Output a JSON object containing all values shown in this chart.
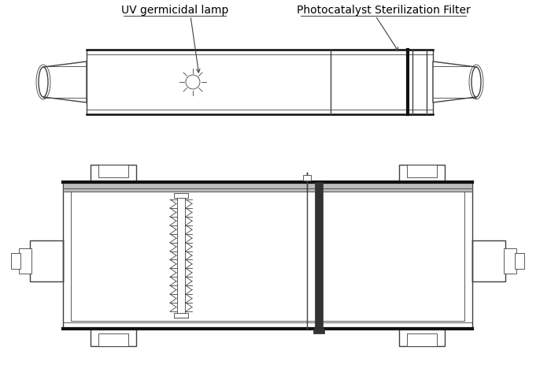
{
  "label_uv": "UV germicidal lamp",
  "label_photo": "Photocatalyst Sterilization Filter",
  "bg_color": "#ffffff",
  "lc": "#404040",
  "lc_thick": "#1a1a1a",
  "lc_black": "#111111",
  "gray_medium": "#aaaaaa",
  "gray_light": "#cccccc",
  "gray_dark": "#555555"
}
